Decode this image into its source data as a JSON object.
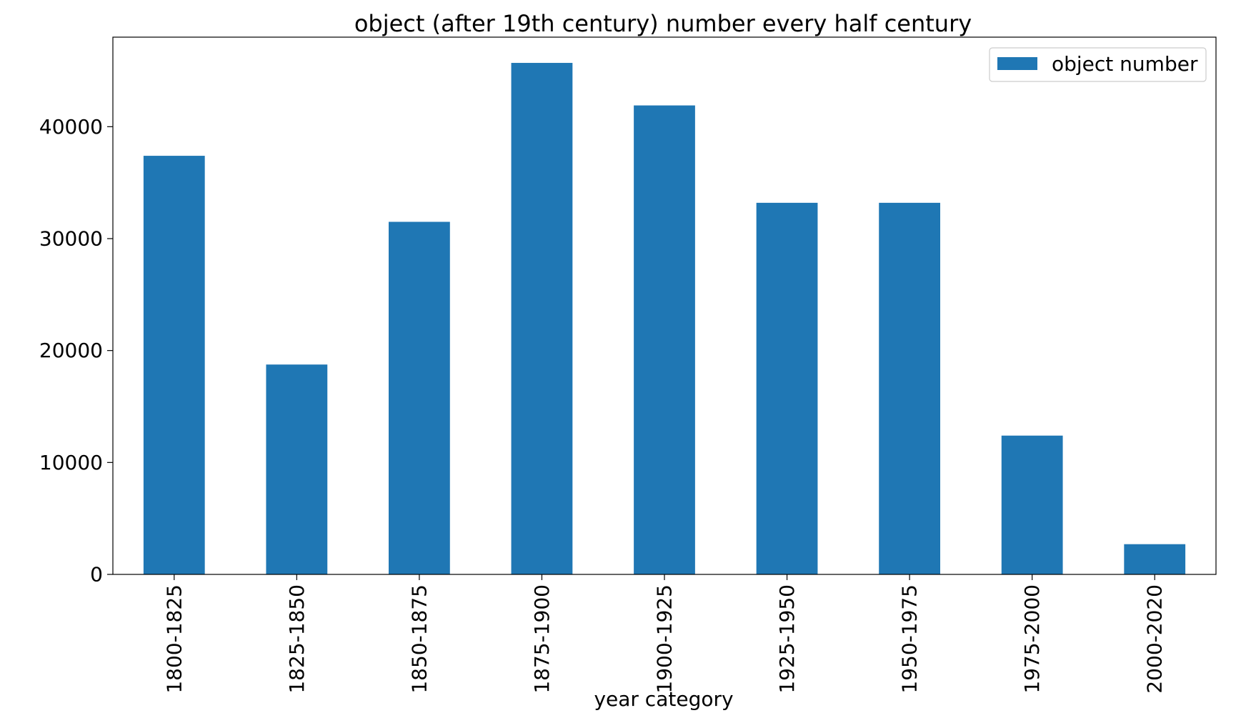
{
  "chart_data": {
    "type": "bar",
    "title": "object (after 19th century) number every half century",
    "xlabel": "year category",
    "ylabel": "",
    "categories": [
      "1800-1825",
      "1825-1850",
      "1850-1875",
      "1875-1900",
      "1900-1925",
      "1925-1950",
      "1950-1975",
      "1975-2000",
      "2000-2020"
    ],
    "series": [
      {
        "name": "object number",
        "color": "#1f77b4",
        "values": [
          37400,
          18750,
          31500,
          45700,
          41900,
          33200,
          33200,
          12400,
          2700
        ]
      }
    ],
    "ylim": [
      0,
      48000
    ],
    "yticks": [
      0,
      10000,
      20000,
      30000,
      40000
    ],
    "ytick_labels": [
      "0",
      "10000",
      "20000",
      "30000",
      "40000"
    ],
    "grid": false,
    "legend_position": "top-right"
  }
}
